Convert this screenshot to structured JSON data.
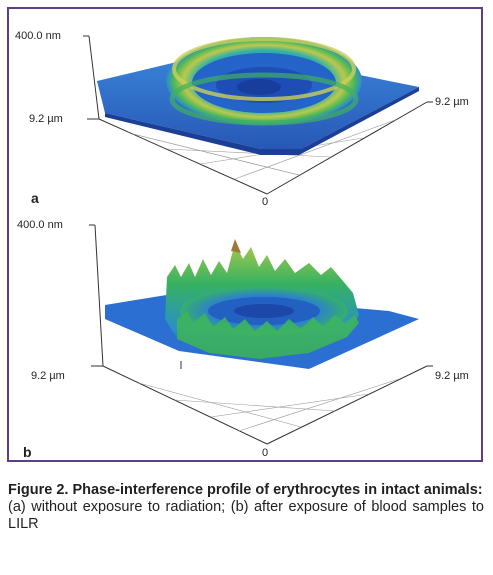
{
  "figure": {
    "panel_a": {
      "letter": "a",
      "z_top_label": "400.0 nm",
      "y_axis_label": "9.2 µm",
      "x_axis_label": "9.2 µm",
      "origin_label": "0"
    },
    "panel_b": {
      "letter": "b",
      "z_top_label": "400.0 nm",
      "y_axis_label": "9.2 µm",
      "x_axis_label": "9.2 µm",
      "origin_label": "0"
    }
  },
  "caption": {
    "title": "Figure 2. Phase-interference profile of erythrocytes in intact animals:",
    "text": "(a) without exposure to radiation; (b) after exposure of blood samples to LILR"
  },
  "colors": {
    "frame": "#5b3f8c",
    "surface_low": "#2a6fd1",
    "surface_mid": "#2fb36b",
    "surface_high": "#c7c94a",
    "peak": "#b07a3a"
  }
}
